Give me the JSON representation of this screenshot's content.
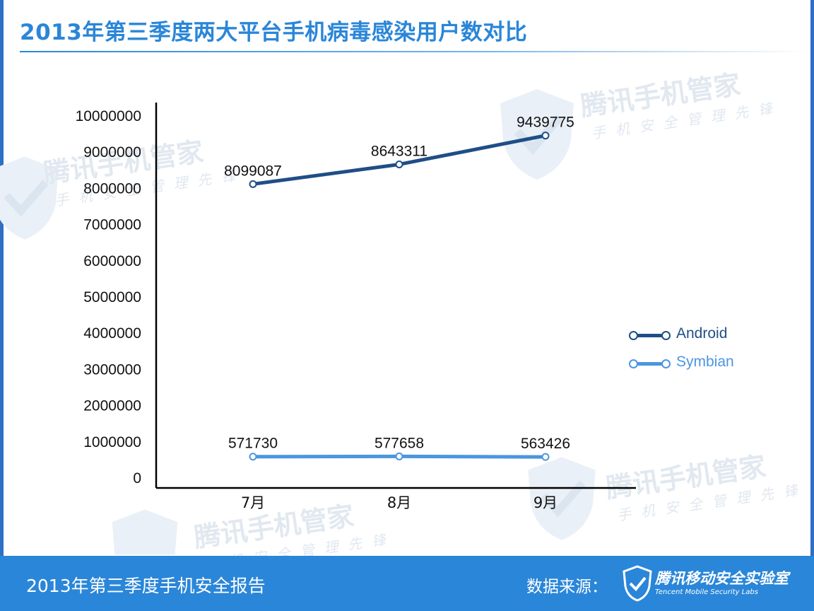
{
  "header": {
    "title": "2013年第三季度两大平台手机病毒感染用户数对比"
  },
  "watermark": {
    "brand": "腾讯手机管家",
    "slogan": "手机安全管理先锋"
  },
  "footer": {
    "report_title": "2013年第三季度手机安全报告",
    "source_label": "数据来源：",
    "org_name": "腾讯移动安全实验室",
    "org_name_en": "Tencent Mobile Security Labs"
  },
  "colors": {
    "brand_blue": "#2a86d8",
    "android": "#1f4e87",
    "symbian": "#4b96df"
  },
  "chart_data": {
    "type": "line",
    "title": "2013年第三季度两大平台手机病毒感染用户数对比",
    "categories": [
      "7月",
      "8月",
      "9月"
    ],
    "ylim": [
      0,
      10000000
    ],
    "yticks": [
      "0",
      "1000000",
      "2000000",
      "3000000",
      "4000000",
      "5000000",
      "6000000",
      "7000000",
      "8000000",
      "9000000",
      "10000000"
    ],
    "grid": false,
    "legend_position": "right",
    "series": [
      {
        "name": "Android",
        "values": [
          8099087,
          8643311,
          9439775
        ],
        "labels": [
          "8099087",
          "8643311",
          "9439775"
        ],
        "color": "#1f4e87"
      },
      {
        "name": "Symbian",
        "values": [
          571730,
          577658,
          563426
        ],
        "labels": [
          "571730",
          "577658",
          "563426"
        ],
        "color": "#4b96df"
      }
    ]
  }
}
